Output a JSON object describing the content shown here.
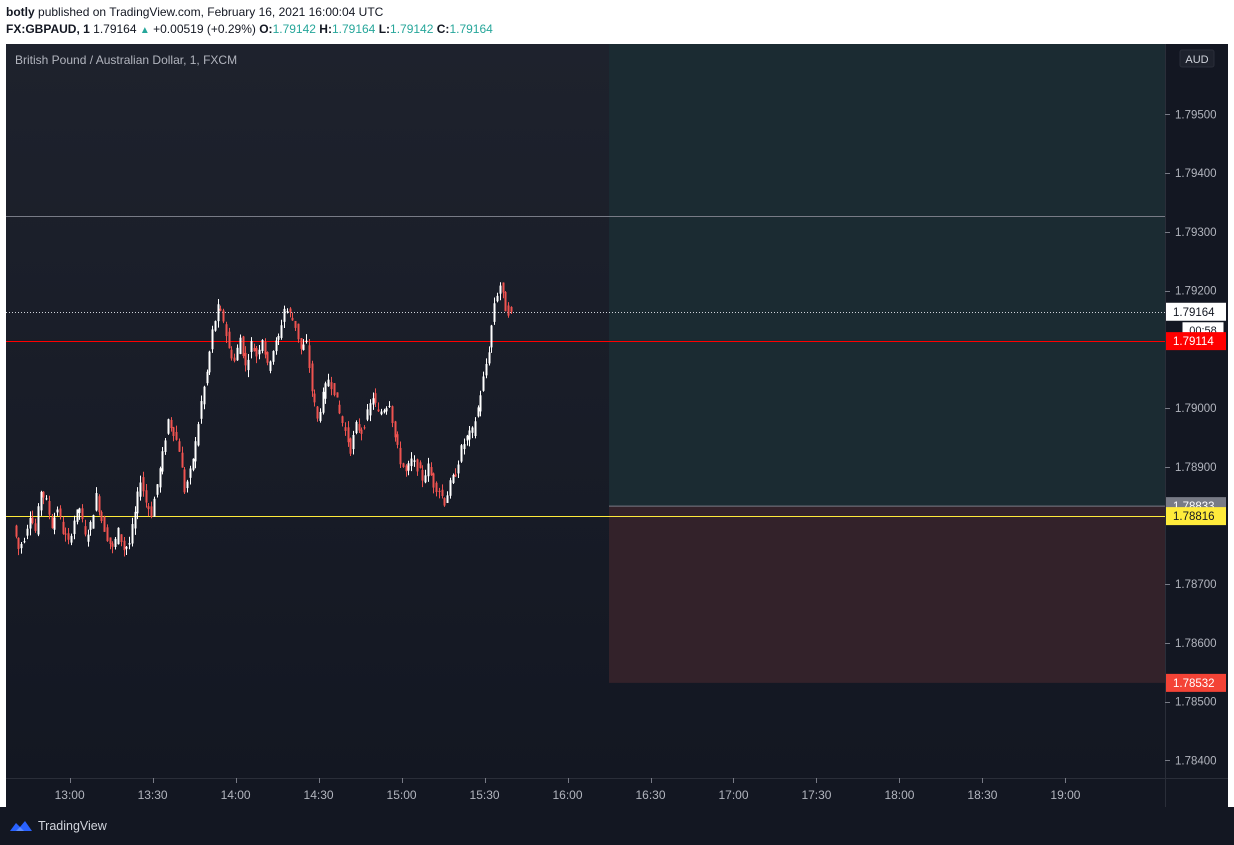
{
  "header": {
    "publisher": "botly",
    "published_text": "published on TradingView.com, February 16, 2021 16:00:04 UTC",
    "symbol": "FX:GBPAUD, 1",
    "last_price": "1.79164",
    "change": "+0.00519 (+0.29%)",
    "o_label": "O:",
    "o_value": "1.79142",
    "h_label": "H:",
    "h_value": "1.79164",
    "l_label": "L:",
    "l_value": "1.79142",
    "c_label": "C:",
    "c_value": "1.79164"
  },
  "chart_title": "British Pound / Australian Dollar, 1, FXCM",
  "currency_button": "AUD",
  "footer": {
    "brand": "TradingView"
  },
  "colors": {
    "background": "#131722",
    "up_candle": "#ffffff",
    "down_candle": "#ef5350",
    "target_zone": "#1b2b32",
    "stop_zone": "#33222a",
    "yellow_line": "#ffeb3b",
    "red_line": "#ff0000",
    "gray_line": "#787b86"
  },
  "chart_data": {
    "type": "candlestick",
    "title": "British Pound / Australian Dollar, 1, FXCM",
    "interval": "1 minute",
    "x_ticks": [
      "13:00",
      "13:30",
      "14:00",
      "14:30",
      "15:00",
      "15:30",
      "16:00",
      "16:30",
      "17:00",
      "17:30",
      "18:00",
      "18:30",
      "19:00"
    ],
    "y_ticks": [
      "1.79500",
      "1.79400",
      "1.79300",
      "1.79200",
      "1.79000",
      "1.78900",
      "1.78700",
      "1.78600",
      "1.78500",
      "1.78400"
    ],
    "ylim": [
      1.7837,
      1.7962
    ],
    "x_range_minutes": [
      757,
      1176
    ],
    "close_path": [
      [
        760,
        1.788
      ],
      [
        762,
        1.7876
      ],
      [
        764,
        1.7878
      ],
      [
        766,
        1.7882
      ],
      [
        768,
        1.7879
      ],
      [
        770,
        1.7886
      ],
      [
        772,
        1.7884
      ],
      [
        774,
        1.788
      ],
      [
        776,
        1.7883
      ],
      [
        778,
        1.7879
      ],
      [
        780,
        1.7877
      ],
      [
        782,
        1.7881
      ],
      [
        784,
        1.7883
      ],
      [
        786,
        1.7878
      ],
      [
        788,
        1.788
      ],
      [
        790,
        1.7885
      ],
      [
        792,
        1.7881
      ],
      [
        794,
        1.7878
      ],
      [
        796,
        1.7876
      ],
      [
        798,
        1.7879
      ],
      [
        800,
        1.7876
      ],
      [
        802,
        1.7877
      ],
      [
        804,
        1.7882
      ],
      [
        806,
        1.7888
      ],
      [
        808,
        1.7884
      ],
      [
        810,
        1.7882
      ],
      [
        812,
        1.7887
      ],
      [
        814,
        1.7892
      ],
      [
        816,
        1.7898
      ],
      [
        818,
        1.7896
      ],
      [
        820,
        1.7893
      ],
      [
        822,
        1.7886
      ],
      [
        824,
        1.7889
      ],
      [
        826,
        1.7894
      ],
      [
        828,
        1.7901
      ],
      [
        830,
        1.7906
      ],
      [
        832,
        1.7913
      ],
      [
        834,
        1.7917
      ],
      [
        836,
        1.7915
      ],
      [
        838,
        1.791
      ],
      [
        840,
        1.7908
      ],
      [
        842,
        1.7912
      ],
      [
        844,
        1.7907
      ],
      [
        846,
        1.7911
      ],
      [
        848,
        1.7909
      ],
      [
        850,
        1.7912
      ],
      [
        852,
        1.7907
      ],
      [
        854,
        1.791
      ],
      [
        856,
        1.7912
      ],
      [
        858,
        1.7917
      ],
      [
        860,
        1.7916
      ],
      [
        862,
        1.7914
      ],
      [
        864,
        1.791
      ],
      [
        866,
        1.7911
      ],
      [
        868,
        1.7903
      ],
      [
        870,
        1.7898
      ],
      [
        872,
        1.7902
      ],
      [
        874,
        1.7905
      ],
      [
        876,
        1.7903
      ],
      [
        878,
        1.7899
      ],
      [
        880,
        1.7896
      ],
      [
        882,
        1.7893
      ],
      [
        884,
        1.7897
      ],
      [
        886,
        1.7896
      ],
      [
        888,
        1.7899
      ],
      [
        890,
        1.7902
      ],
      [
        892,
        1.7899
      ],
      [
        894,
        1.79
      ],
      [
        896,
        1.7901
      ],
      [
        898,
        1.7895
      ],
      [
        900,
        1.7891
      ],
      [
        902,
        1.7889
      ],
      [
        904,
        1.7891
      ],
      [
        906,
        1.789
      ],
      [
        908,
        1.7888
      ],
      [
        910,
        1.789
      ],
      [
        912,
        1.7887
      ],
      [
        914,
        1.7886
      ],
      [
        916,
        1.7884
      ],
      [
        918,
        1.7887
      ],
      [
        920,
        1.7889
      ],
      [
        922,
        1.7893
      ],
      [
        924,
        1.7895
      ],
      [
        926,
        1.7896
      ],
      [
        928,
        1.79
      ],
      [
        930,
        1.7905
      ],
      [
        932,
        1.791
      ],
      [
        934,
        1.7918
      ],
      [
        936,
        1.7921
      ],
      [
        938,
        1.7917
      ],
      [
        940,
        1.7916
      ]
    ],
    "reference_lines": [
      {
        "price": 1.79327,
        "style": "solid",
        "color": "#787b86"
      },
      {
        "price": 1.79164,
        "style": "dotted",
        "color": "#d1d4dc",
        "label": "1.79164"
      },
      {
        "price": 1.79114,
        "style": "solid",
        "color": "#ff0000",
        "label": "1.79114"
      },
      {
        "price": 1.78816,
        "style": "solid",
        "color": "#ffeb3b",
        "label": "1.78816"
      }
    ],
    "position_tool": {
      "start_time": "16:15",
      "entry": 1.78833,
      "target": 1.7962,
      "stop": 1.78532,
      "entry_label": "1.78833",
      "stop_label": "1.78532"
    },
    "countdown": "00:58"
  }
}
